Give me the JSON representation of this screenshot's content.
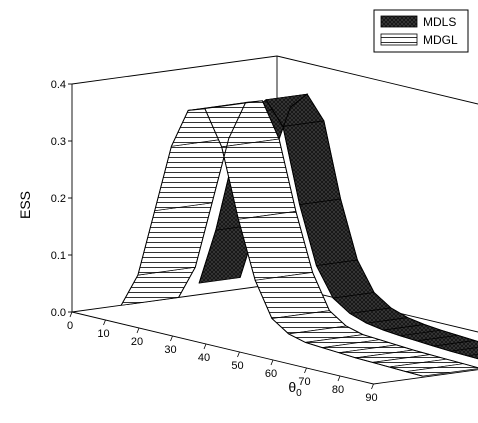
{
  "chart_data": {
    "type": "surface3d",
    "title": "",
    "ylabel": "ESS",
    "xlabel": "θ",
    "xlabel_subscript": "0",
    "zlim": [
      0.0,
      0.4
    ],
    "z_ticks": [
      "0.4",
      "0.3",
      "0.2",
      "0.1",
      "0.0"
    ],
    "x_ticks": [
      "0",
      "10",
      "20",
      "30",
      "40",
      "50",
      "60",
      "70",
      "80",
      "90"
    ],
    "legend_position": "top-right",
    "series": [
      {
        "name": "MDLS",
        "fill": "dark-crosshatch",
        "x": [
          0,
          5,
          10,
          15,
          20,
          25,
          30,
          35,
          40,
          45,
          50,
          55,
          60,
          65,
          70,
          75,
          80,
          85,
          90
        ],
        "values": [
          0.02,
          0.12,
          0.25,
          0.34,
          0.37,
          0.33,
          0.2,
          0.1,
          0.05,
          0.03,
          0.02,
          0.015,
          0.012,
          0.01,
          0.008,
          0.006,
          0.005,
          0.004,
          0.003
        ]
      },
      {
        "name": "MDGL",
        "fill": "white-hatch",
        "x": [
          0,
          5,
          10,
          15,
          20,
          25,
          30,
          35,
          40,
          45,
          50,
          55,
          60,
          65,
          70,
          75,
          80,
          85,
          90
        ],
        "values": [
          0.0,
          0.06,
          0.18,
          0.3,
          0.37,
          0.38,
          0.32,
          0.2,
          0.1,
          0.04,
          0.02,
          0.012,
          0.01,
          0.008,
          0.006,
          0.005,
          0.004,
          0.003,
          0.002
        ]
      }
    ]
  }
}
